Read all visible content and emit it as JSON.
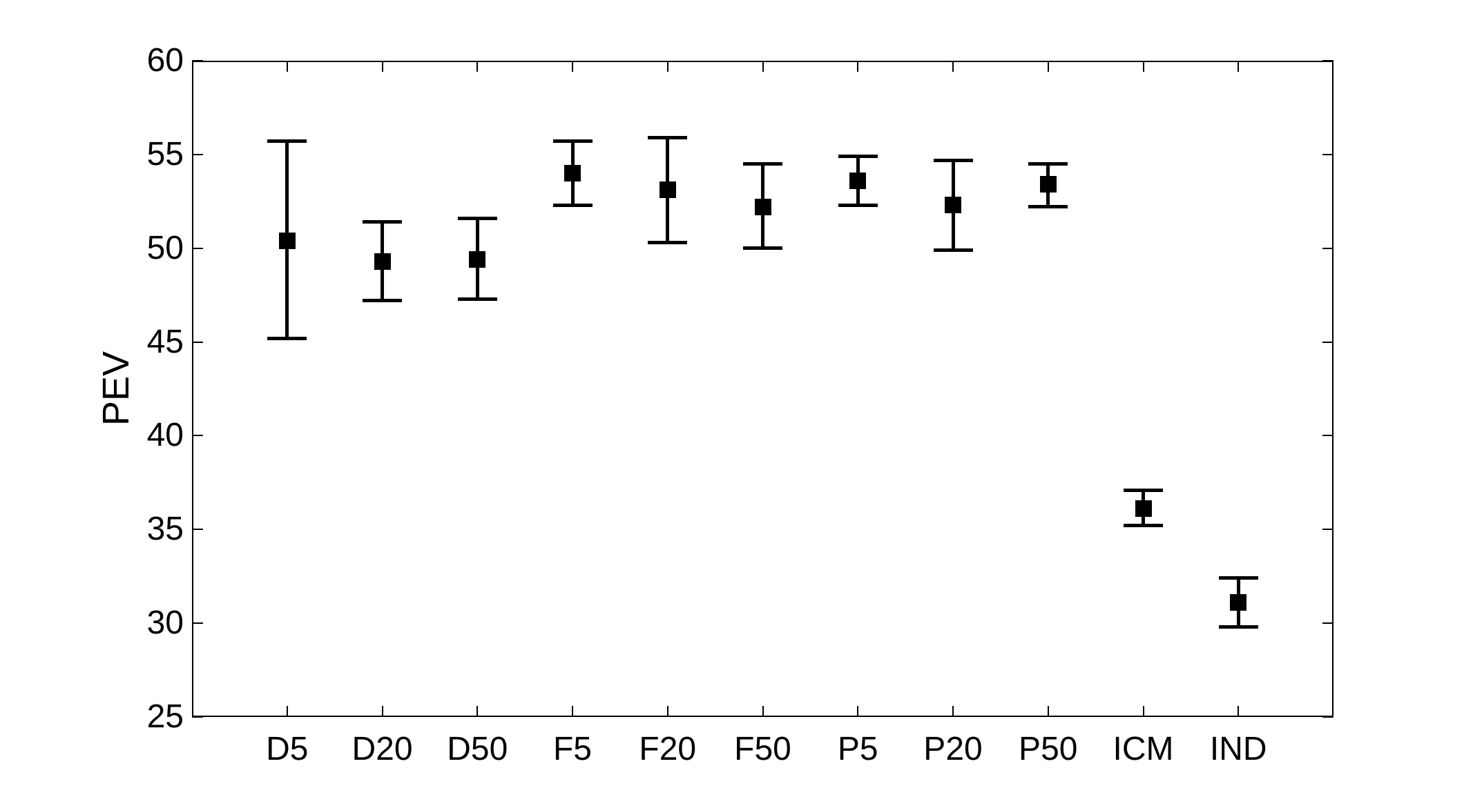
{
  "figure": {
    "background_color": "#ffffff",
    "foreground_color": "#000000"
  },
  "chart_data": {
    "type": "errorbar",
    "title": "",
    "xlabel": "",
    "ylabel": "PEV",
    "ylim": [
      25,
      60
    ],
    "yticks": [
      25,
      30,
      35,
      40,
      45,
      50,
      55,
      60
    ],
    "grid": false,
    "legend": false,
    "categories": [
      "D5",
      "D20",
      "D50",
      "F5",
      "F20",
      "F50",
      "P5",
      "P20",
      "P50",
      "ICM",
      "IND"
    ],
    "series": [
      {
        "name": "PEV",
        "marker": "filled-square",
        "color": "#000000",
        "values": [
          50.4,
          49.3,
          49.4,
          54.0,
          53.1,
          52.2,
          53.6,
          52.3,
          53.4,
          36.1,
          31.1
        ],
        "upper": [
          55.7,
          51.4,
          51.6,
          55.7,
          55.9,
          54.5,
          54.9,
          54.7,
          54.5,
          37.1,
          32.4
        ],
        "lower": [
          45.2,
          47.2,
          47.3,
          52.3,
          50.3,
          50.0,
          52.3,
          49.9,
          52.2,
          35.2,
          29.8
        ]
      }
    ]
  }
}
